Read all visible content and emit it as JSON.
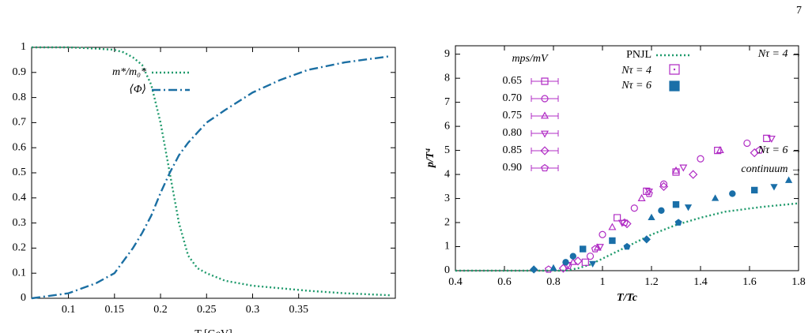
{
  "page_number": "7",
  "chart_data": [
    {
      "type": "line",
      "xlabel": "T [GeV]",
      "x": [
        0.06,
        0.1,
        0.13,
        0.15,
        0.16,
        0.17,
        0.18,
        0.19,
        0.2,
        0.21,
        0.22,
        0.23,
        0.24,
        0.25,
        0.27,
        0.3,
        0.33,
        0.36,
        0.4,
        0.45
      ],
      "series": [
        {
          "name": "m*/m₀*",
          "color": "#1f9a6c",
          "style": "dotted",
          "values": [
            1,
            1,
            0.995,
            0.99,
            0.98,
            0.96,
            0.93,
            0.85,
            0.7,
            0.5,
            0.3,
            0.17,
            0.12,
            0.1,
            0.07,
            0.05,
            0.04,
            0.03,
            0.02,
            0.012
          ]
        },
        {
          "name": "⟨Φ⟩",
          "color": "#1b6fa3",
          "style": "dashdot",
          "values": [
            0,
            0.02,
            0.06,
            0.1,
            0.15,
            0.2,
            0.26,
            0.33,
            0.42,
            0.5,
            0.57,
            0.62,
            0.66,
            0.7,
            0.75,
            0.82,
            0.87,
            0.91,
            0.94,
            0.965
          ]
        }
      ],
      "xlim": [
        0.06,
        0.455
      ],
      "xticks": [
        0.1,
        0.15,
        0.2,
        0.25,
        0.3,
        0.35
      ],
      "ylim": [
        0,
        1
      ],
      "yticks": [
        0,
        0.1,
        0.2,
        0.3,
        0.4,
        0.5,
        0.6,
        0.7,
        0.8,
        0.9,
        1
      ]
    },
    {
      "type": "scatter",
      "xlabel": "T/Tc",
      "ylabel": "p/T⁴",
      "legend_title": "mps/mV",
      "xlim": [
        0.4,
        1.8
      ],
      "xticks": [
        0.4,
        0.6,
        0.8,
        1,
        1.2,
        1.4,
        1.6,
        1.8
      ],
      "ylim": [
        0,
        9.35
      ],
      "yticks": [
        0,
        1,
        2,
        3,
        4,
        5,
        6,
        7,
        8,
        9
      ],
      "lines": [
        {
          "name": "PNJL",
          "color": "#1f9a6c",
          "style": "dotted",
          "x": [
            0.4,
            0.85,
            0.9,
            0.95,
            1,
            1.1,
            1.2,
            1.3,
            1.4,
            1.5,
            1.65,
            1.8
          ],
          "values": [
            0,
            0,
            0.1,
            0.25,
            0.5,
            1,
            1.5,
            1.9,
            2.2,
            2.45,
            2.65,
            2.8
          ]
        }
      ],
      "series": [
        {
          "name": "0.65",
          "marker": "square",
          "color": "#b02cc4",
          "x": [
            0.93,
            1.06,
            1.18,
            1.3,
            1.47,
            1.67
          ],
          "values": [
            0.35,
            2.2,
            3.3,
            4.1,
            5,
            5.5
          ]
        },
        {
          "name": "0.70",
          "marker": "circle",
          "color": "#b02cc4",
          "x": [
            0.95,
            1,
            1.13,
            1.25,
            1.4,
            1.59
          ],
          "values": [
            0.6,
            1.5,
            2.6,
            3.6,
            4.65,
            5.3
          ]
        },
        {
          "name": "0.75",
          "marker": "triangle",
          "color": "#b02cc4",
          "x": [
            0.88,
            0.98,
            1.04,
            1.16,
            1.3,
            1.48
          ],
          "values": [
            0.35,
            0.95,
            1.8,
            3,
            4.15,
            5
          ]
        },
        {
          "name": "0.80",
          "marker": "triangle-down",
          "color": "#b02cc4",
          "x": [
            0.86,
            0.99,
            1.08,
            1.19,
            1.33,
            1.69
          ],
          "values": [
            0.25,
            1,
            2,
            3.3,
            4.3,
            5.5
          ]
        },
        {
          "name": "0.85",
          "marker": "diamond",
          "color": "#b02cc4",
          "x": [
            0.84,
            0.9,
            1.1,
            1.25,
            1.37,
            1.62
          ],
          "values": [
            0.1,
            0.4,
            1.95,
            3.5,
            4,
            4.9
          ]
        },
        {
          "name": "0.90",
          "marker": "pentagon",
          "color": "#b02cc4",
          "x": [
            0.78,
            0.86,
            0.97,
            1.09,
            1.19,
            1.64
          ],
          "values": [
            0.05,
            0.2,
            0.9,
            2,
            3.2,
            5
          ]
        }
      ],
      "series_coarse": {
        "name": "Nτ = 4",
        "marker": "square",
        "color": "#b02cc4"
      },
      "series_fine": {
        "name": "Nτ = 6",
        "color": "#1a6fa8",
        "markers": [
          "diamond",
          "triangle",
          "circle",
          "circle",
          "square",
          "triangle-down",
          "square",
          "pentagon",
          "diamond",
          "triangle",
          "circle",
          "square",
          "pentagon",
          "triangle-down",
          "triangle",
          "circle",
          "square",
          "triangle-down",
          "triangle"
        ],
        "x": [
          0.72,
          0.8,
          0.85,
          0.88,
          0.92,
          0.96,
          1.04,
          1.1,
          1.18,
          1.2,
          1.24,
          1.3,
          1.31,
          1.35,
          1.46,
          1.53,
          1.62,
          1.7,
          1.76
        ],
        "values": [
          0.05,
          0.1,
          0.35,
          0.6,
          0.9,
          0.3,
          1.25,
          1,
          1.3,
          2.2,
          2.5,
          2.75,
          2,
          2.65,
          3,
          3.2,
          3.35,
          3.5,
          3.75
        ]
      },
      "annotations": [
        {
          "text": "Nτ = 4 →",
          "value": 9
        },
        {
          "text": "Nτ = 6 →",
          "value": 5
        },
        {
          "text": "continuum →",
          "value": 4.2
        }
      ],
      "annotation_color": "#e0208c"
    }
  ]
}
